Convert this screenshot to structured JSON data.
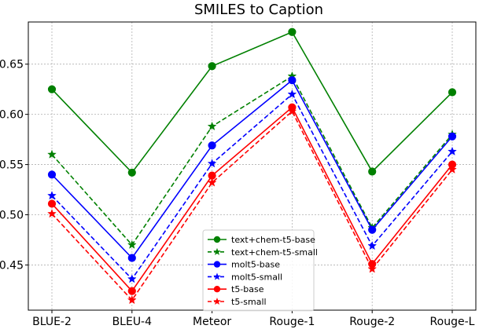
{
  "chart_data": {
    "type": "line",
    "title": "SMILES to Caption",
    "xlabel": "",
    "ylabel": "",
    "categories": [
      "BLUE-2",
      "BLEU-4",
      "Meteor",
      "Rouge-1",
      "Rouge-2",
      "Rouge-L"
    ],
    "ylim": [
      0.405,
      0.692
    ],
    "yticks": [
      0.45,
      0.5,
      0.55,
      0.6,
      0.65
    ],
    "ytick_labels": [
      "0.45",
      "0.50",
      "0.55",
      "0.60",
      "0.65"
    ],
    "grid": true,
    "legend_position": "bottom-center",
    "series": [
      {
        "name": "text+chem-t5-base",
        "color": "#008000",
        "style": "solid",
        "marker": "circle",
        "values": [
          0.625,
          0.542,
          0.648,
          0.682,
          0.543,
          0.622
        ]
      },
      {
        "name": "text+chem-t5-small",
        "color": "#008000",
        "style": "dashed",
        "marker": "star",
        "values": [
          0.56,
          0.47,
          0.588,
          0.638,
          0.487,
          0.58
        ]
      },
      {
        "name": "molt5-base",
        "color": "#0000ff",
        "style": "solid",
        "marker": "circle",
        "values": [
          0.54,
          0.457,
          0.569,
          0.634,
          0.485,
          0.578
        ]
      },
      {
        "name": "molt5-small",
        "color": "#0000ff",
        "style": "dashed",
        "marker": "star",
        "values": [
          0.519,
          0.436,
          0.551,
          0.62,
          0.469,
          0.563
        ]
      },
      {
        "name": "t5-base",
        "color": "#ff0000",
        "style": "solid",
        "marker": "circle",
        "values": [
          0.511,
          0.424,
          0.539,
          0.607,
          0.451,
          0.55
        ]
      },
      {
        "name": "t5-small",
        "color": "#ff0000",
        "style": "dashed",
        "marker": "star",
        "values": [
          0.501,
          0.415,
          0.532,
          0.603,
          0.446,
          0.545
        ]
      }
    ]
  }
}
